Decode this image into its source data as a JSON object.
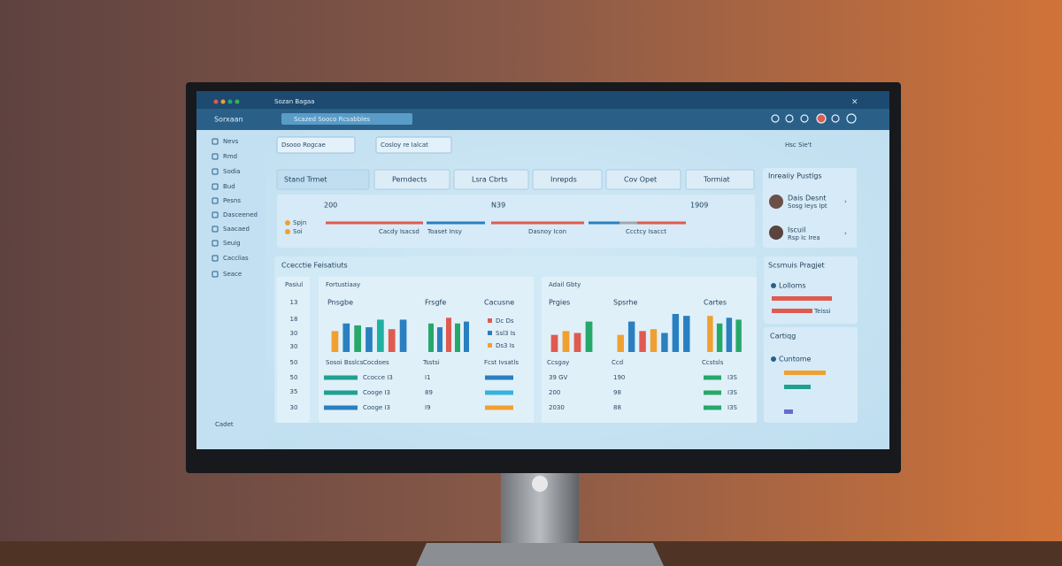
{
  "window": {
    "title": "Sozan Bagaa",
    "app": "Sorxaan",
    "search": "Scazed Sooco Rcsabbles"
  },
  "sidebar": {
    "items": [
      "Nevs",
      "Rmd",
      "Sodia",
      "Bud",
      "Pesns",
      "Dasceened",
      "Saacaed",
      "Seuig",
      "Cacclias",
      "Seace"
    ],
    "footer": "Cadet"
  },
  "toolbar": {
    "filter": "Dsooo Rogcae",
    "sort": "Cosloy re Ialcat",
    "view": "Hsc Sie't"
  },
  "tabs": [
    "Stand Trmet",
    "Perndects",
    "Lsra Cbrts",
    "Inrepds",
    "Cov Opet",
    "Tormiat"
  ],
  "timeline": {
    "marks": [
      "200",
      "N39",
      "1909"
    ],
    "legend": [
      "Spjn",
      "Soi"
    ],
    "captions": [
      "Cacdy Isacsd",
      "Toaset Insy",
      "Dasnoy Icon",
      "Ccctcy Isacct"
    ]
  },
  "people": {
    "title": "Inreaiiy Pustlgs",
    "items": [
      {
        "name": "Dais Desnt",
        "detail": "Sosg Ieys Ipt"
      },
      {
        "name": "Iscuil",
        "detail": "Rsp Ic Irea"
      }
    ]
  },
  "report": {
    "title": "Ccecctie Feisatiuts",
    "left_header": "Pasiul",
    "left_numbers": [
      "13",
      "18",
      "30",
      "30",
      "50",
      "50",
      "35",
      "30"
    ],
    "group_titles": [
      "Fortustiaay",
      "Adail Gbty"
    ],
    "ylim": [
      0,
      10
    ],
    "charts": [
      {
        "title": "Pnsgbe",
        "captions": [
          "Sosoi Bsslcs",
          "Cocdoes"
        ],
        "values": [
          5.5,
          7.5,
          7,
          6.5,
          8.5,
          6,
          8.5
        ],
        "colors": [
          "#f0a030",
          "#2a7fc0",
          "#26a86a",
          "#2a7fc0",
          "#20b0a0",
          "#e05a50",
          "#2a7fc0"
        ]
      },
      {
        "title": "Frsgfe",
        "captions": [
          "Tsstsi"
        ],
        "values": [
          7.5,
          6.5,
          9,
          7.5,
          8
        ],
        "colors": [
          "#26a86a",
          "#2a7fc0",
          "#e05a50",
          "#26a86a",
          "#2a7fc0"
        ]
      },
      {
        "title": "Prgies",
        "captions": [
          "Ccsgay"
        ],
        "values": [
          4.5,
          5.5,
          5,
          8
        ],
        "colors": [
          "#e05a50",
          "#f0a030",
          "#e05a50",
          "#26a86a"
        ]
      },
      {
        "title": "Spsrhe",
        "captions": [
          "Ccd"
        ],
        "values": [
          4.5,
          8,
          5.5,
          6,
          5,
          10,
          9.5
        ],
        "colors": [
          "#f0a030",
          "#2a7fc0",
          "#e05a50",
          "#f0a030",
          "#2a7fc0",
          "#2a7fc0",
          "#2a7fc0"
        ]
      },
      {
        "title": "Cartes",
        "captions": [
          "Ccstsls"
        ],
        "values": [
          9.5,
          7.5,
          9,
          8.5
        ],
        "colors": [
          "#f0a030",
          "#26a86a",
          "#2a7fc0",
          "#26a86a"
        ]
      }
    ],
    "legend": {
      "title": "Cacusne",
      "items": [
        "Dc Ds",
        "Ssl3 Is",
        "Ds3 Is"
      ],
      "caption": "Fcst Ivsatls"
    },
    "rows_a": [
      [
        "Ccocce I3",
        "I1"
      ],
      [
        "Cooge I3",
        "89"
      ],
      [
        "Cooge I3",
        "I9"
      ]
    ],
    "rows_b": [
      [
        "39 GV",
        "190",
        "I3S"
      ],
      [
        "200",
        "98",
        "I3S"
      ],
      [
        "2030",
        "88",
        "I3S"
      ]
    ]
  },
  "projects": {
    "title": "Scsmuis Pragjet",
    "item": "Lolloms",
    "note": "Teissi"
  },
  "cartiqg": {
    "title": "Cartiqg",
    "item": "Cuntome"
  }
}
